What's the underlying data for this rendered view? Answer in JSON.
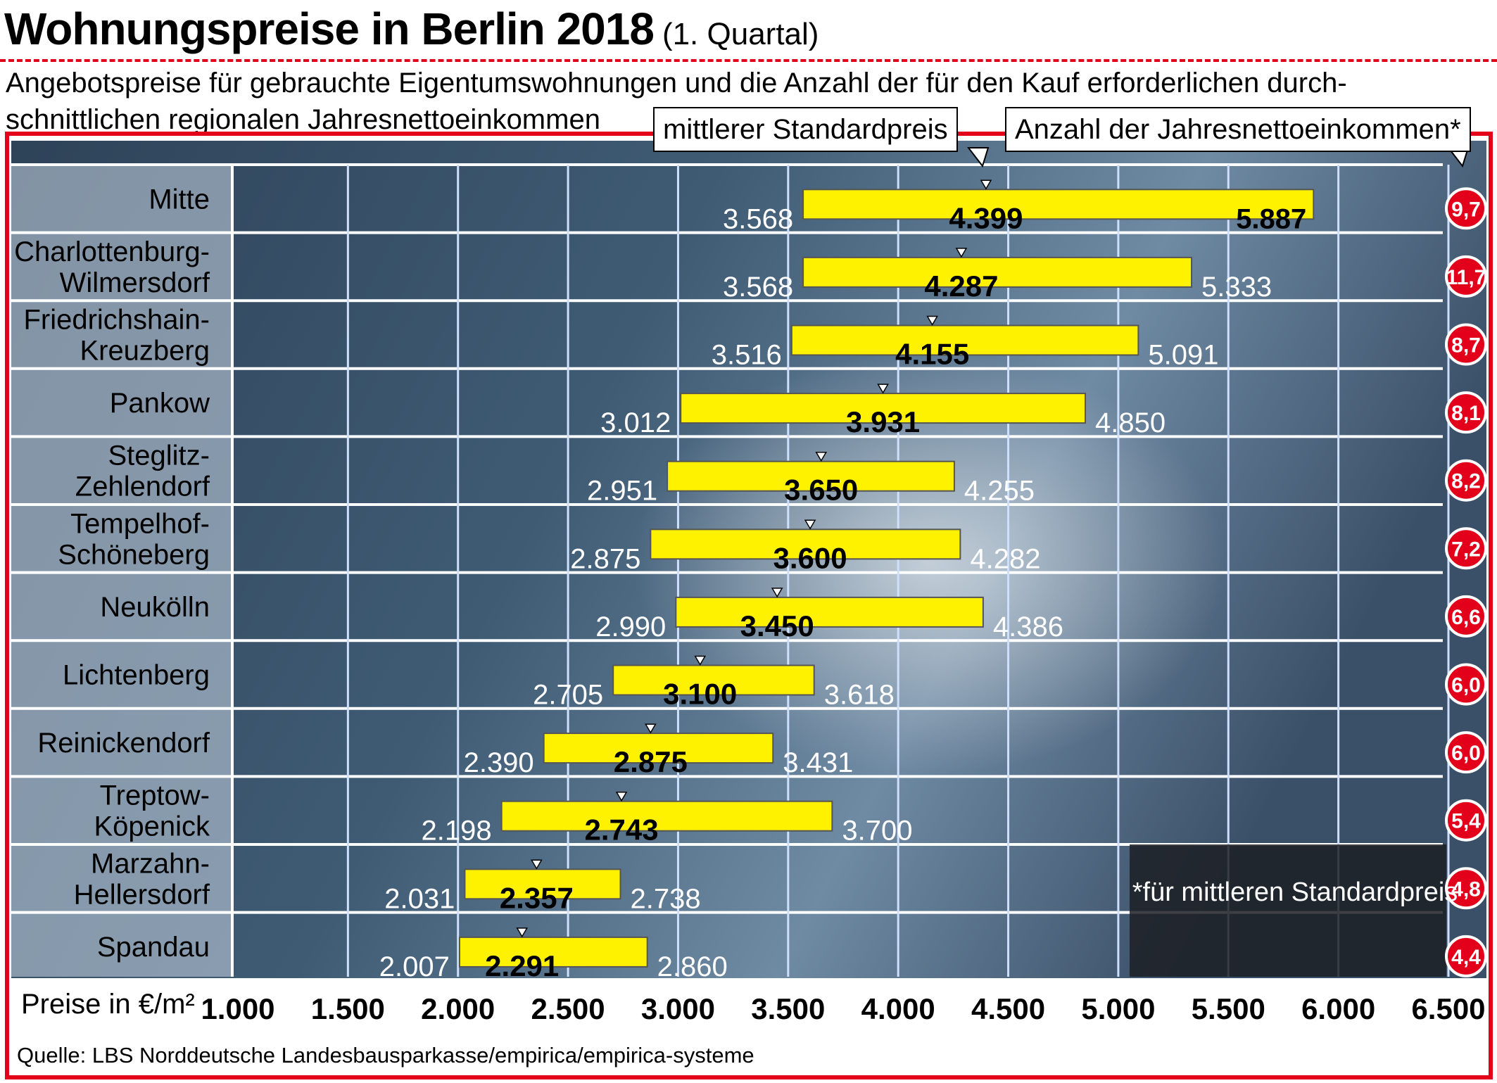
{
  "title": "Wohnungspreise in Berlin 2018",
  "title_suffix": "(1. Quartal)",
  "subtitle": "Angebotspreise für gebrauchte Eigentumswohnungen und die Anzahl der für den Kauf erforderlichen durch-schnittlichen regionalen Jahresnettoeinkommen",
  "callouts": {
    "median": "mittlerer Standardpreis",
    "income": "Anzahl der Jahresnettoeinkommen*"
  },
  "footnote": "*für mittleren Standardpreis",
  "source": "Quelle: LBS Norddeutsche Landesbausparkasse/empirica/empirica-systeme",
  "colors": {
    "bar": "#fff200",
    "accent": "#e2001a",
    "background": "#3f5b74"
  },
  "chart_data": {
    "type": "bar",
    "orientation": "horizontal",
    "xlabel": "Preise in €/m²",
    "xlim": [
      1000,
      6500
    ],
    "xticks": [
      1000,
      1500,
      2000,
      2500,
      3000,
      3500,
      4000,
      4500,
      5000,
      5500,
      6000,
      6500
    ],
    "xtick_labels": [
      "1.000",
      "1.500",
      "2.000",
      "2.500",
      "3.000",
      "3.500",
      "4.000",
      "4.500",
      "5.000",
      "5.500",
      "6.000",
      "6.500"
    ],
    "grid": true,
    "categories": [
      [
        "Mitte"
      ],
      [
        "Charlottenburg-",
        "Wilmersdorf"
      ],
      [
        "Friedrichshain-",
        "Kreuzberg"
      ],
      [
        "Pankow"
      ],
      [
        "Steglitz-",
        "Zehlendorf"
      ],
      [
        "Tempelhof-",
        "Schöneberg"
      ],
      [
        "Neukölln"
      ],
      [
        "Lichtenberg"
      ],
      [
        "Reinickendorf"
      ],
      [
        "Treptow-",
        "Köpenick"
      ],
      [
        "Marzahn-",
        "Hellersdorf"
      ],
      [
        "Spandau"
      ]
    ],
    "low": [
      3568,
      3568,
      3516,
      3012,
      2951,
      2875,
      2990,
      2705,
      2390,
      2198,
      2031,
      2007
    ],
    "median": [
      4399,
      4287,
      4155,
      3931,
      3650,
      3600,
      3450,
      3100,
      2875,
      2743,
      2357,
      2291
    ],
    "high": [
      5887,
      5333,
      5091,
      4850,
      4255,
      4282,
      4386,
      3618,
      3431,
      3700,
      2738,
      2860
    ],
    "low_labels": [
      "3.568",
      "3.568",
      "3.516",
      "3.012",
      "2.951",
      "2.875",
      "2.990",
      "2.705",
      "2.390",
      "2.198",
      "2.031",
      "2.007"
    ],
    "median_labels": [
      "4.399",
      "4.287",
      "4.155",
      "3.931",
      "3.650",
      "3.600",
      "3.450",
      "3.100",
      "2.875",
      "2.743",
      "2.357",
      "2.291"
    ],
    "high_labels": [
      "5.887",
      "5.333",
      "5.091",
      "4.850",
      "4.255",
      "4.282",
      "4.386",
      "3.618",
      "3.431",
      "3.700",
      "2.738",
      "2.860"
    ],
    "income_years": [
      "9,7",
      "11,7",
      "8,7",
      "8,1",
      "8,2",
      "7,2",
      "6,6",
      "6,0",
      "6,0",
      "5,4",
      "4,8",
      "4,4"
    ]
  }
}
